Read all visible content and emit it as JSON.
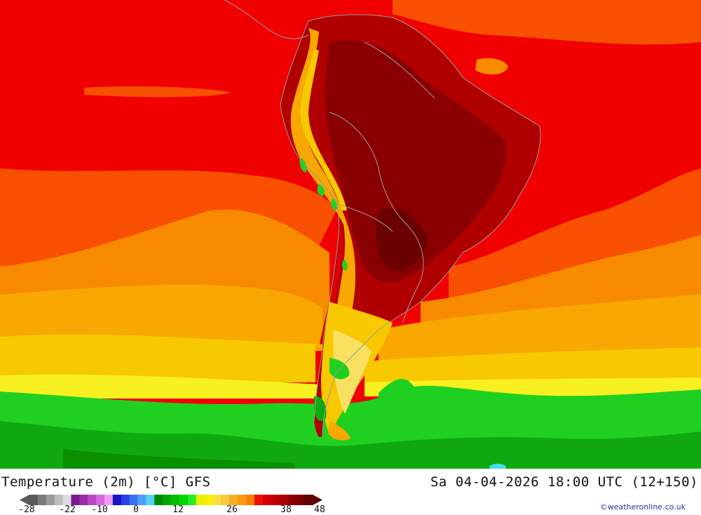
{
  "title": {
    "parameter": "Temperature (2m) [°C] GFS",
    "datetime": "Sa 04-04-2026 18:00 UTC (12+150)"
  },
  "credit": "©weatheronline.co.uk",
  "legend": {
    "tick_labels": [
      "-28",
      "-22",
      "-10",
      "0",
      "12",
      "26",
      "38",
      "48"
    ],
    "colors": [
      "#5a5a5a",
      "#7a7a7a",
      "#9a9a9a",
      "#bdbdbd",
      "#dcdcdc",
      "#7a1a8a",
      "#9a2aa8",
      "#bb44c8",
      "#d865e0",
      "#f09af0",
      "#1a10c8",
      "#2a40e8",
      "#3a70f0",
      "#4aa0f5",
      "#55d0f8",
      "#008a00",
      "#00a800",
      "#00c000",
      "#00d800",
      "#20ee20",
      "#e6f000",
      "#f8f000",
      "#f8e040",
      "#f8c840",
      "#f8b020",
      "#f89a10",
      "#f88000",
      "#e81000",
      "#d80000",
      "#c00000",
      "#a80000",
      "#900000",
      "#780000",
      "#600000"
    ]
  },
  "map": {
    "region": "South America",
    "colors": {
      "dark_red": "#8a0000",
      "maroon": "#b00000",
      "red": "#f00000",
      "orange_red": "#f85000",
      "orange": "#f88a00",
      "light_orange": "#f8a800",
      "yellow_orange": "#f8c800",
      "yellow": "#f8f020",
      "lime": "#a0f000",
      "green": "#20d020",
      "dark_green": "#10a810",
      "cyan": "#40e0f0",
      "border": "#9a9a9a"
    }
  }
}
